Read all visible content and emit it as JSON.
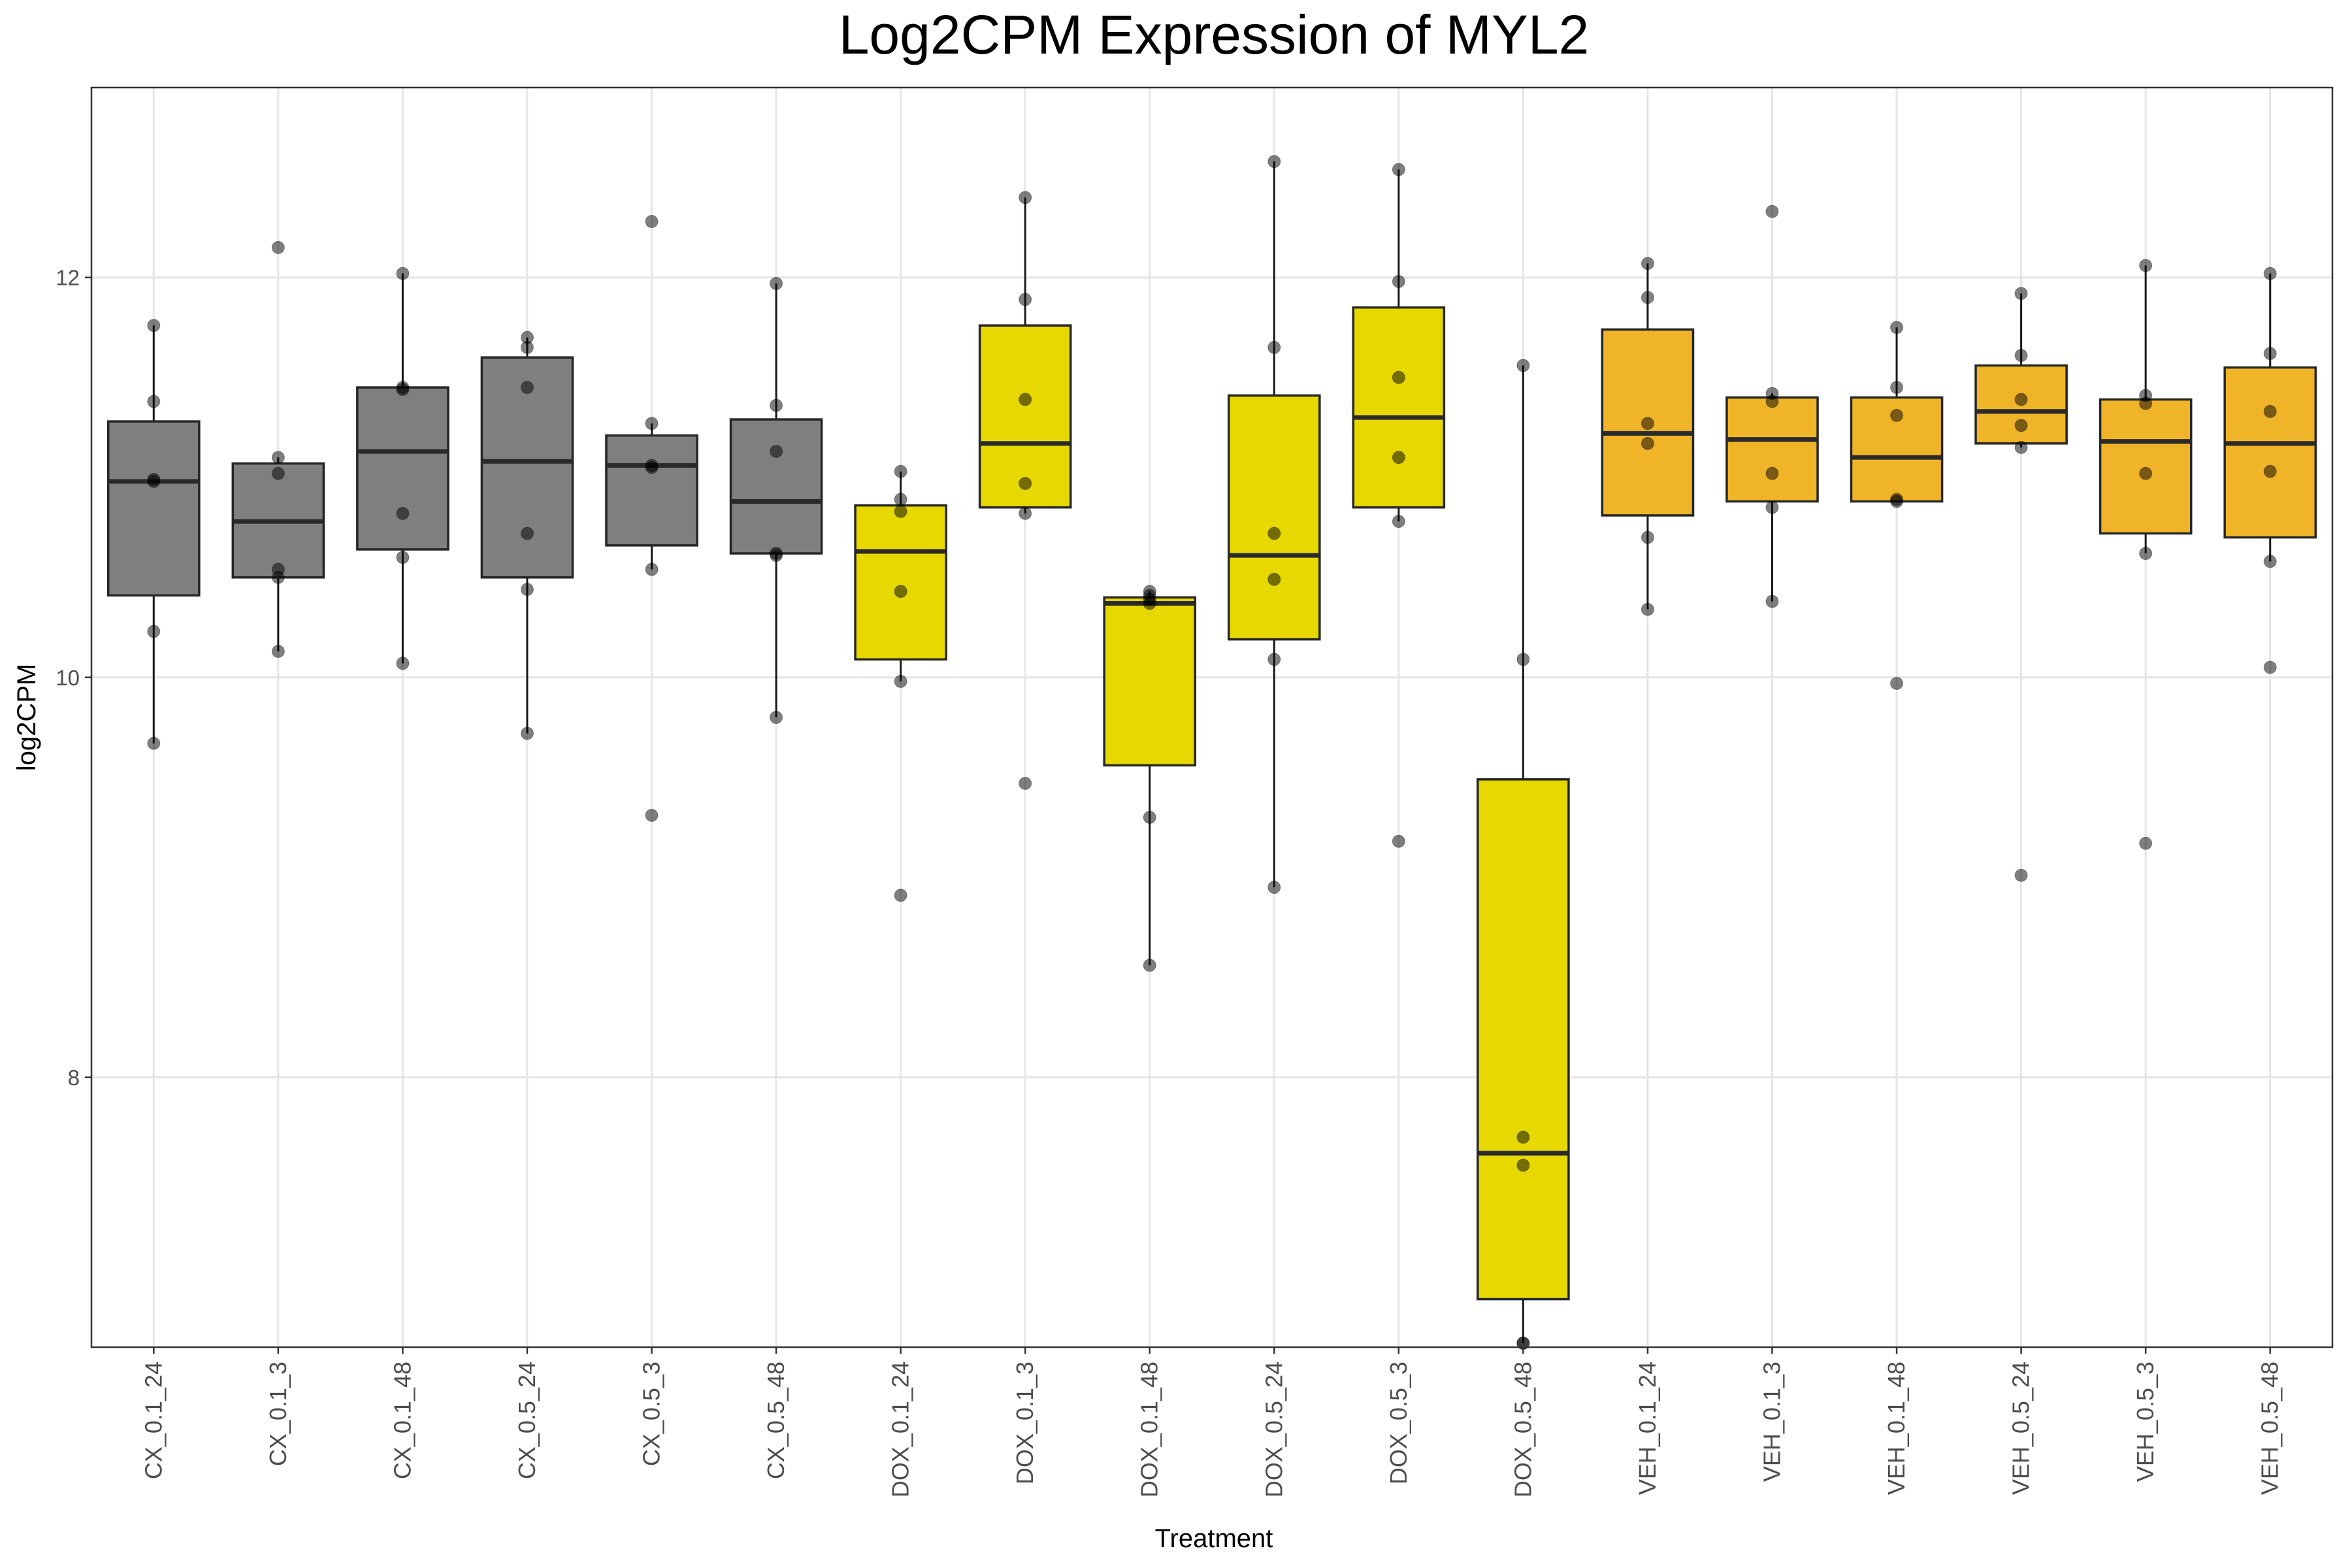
{
  "chart_data": {
    "type": "box",
    "title": "Log2CPM Expression of MYL2",
    "xlabel": "Treatment",
    "ylabel": "log2CPM",
    "ylim": [
      6.65,
      12.95
    ],
    "yticks": [
      8,
      10,
      12
    ],
    "grid": true,
    "legend": "none",
    "colors": {
      "CX": "#7f7f7f",
      "DOX": "#e6d800",
      "VEH": "#f0b429"
    },
    "categories": [
      "CX_0.1_24",
      "CX_0.1_3",
      "CX_0.1_48",
      "CX_0.5_24",
      "CX_0.5_3",
      "CX_0.5_48",
      "DOX_0.1_24",
      "DOX_0.1_3",
      "DOX_0.1_48",
      "DOX_0.5_24",
      "DOX_0.5_3",
      "DOX_0.5_48",
      "VEH_0.1_24",
      "VEH_0.1_3",
      "VEH_0.1_48",
      "VEH_0.5_24",
      "VEH_0.5_3",
      "VEH_0.5_48"
    ],
    "groups": [
      "CX",
      "CX",
      "CX",
      "CX",
      "CX",
      "CX",
      "DOX",
      "DOX",
      "DOX",
      "DOX",
      "DOX",
      "DOX",
      "VEH",
      "VEH",
      "VEH",
      "VEH",
      "VEH",
      "VEH"
    ],
    "boxes": [
      {
        "q1": 10.41,
        "median": 10.98,
        "q3": 11.28,
        "whisker_low": 9.67,
        "whisker_high": 11.76
      },
      {
        "q1": 10.5,
        "median": 10.78,
        "q3": 11.07,
        "whisker_low": 10.13,
        "whisker_high": 11.1
      },
      {
        "q1": 10.64,
        "median": 11.13,
        "q3": 11.45,
        "whisker_low": 10.07,
        "whisker_high": 12.02
      },
      {
        "q1": 10.5,
        "median": 11.08,
        "q3": 11.6,
        "whisker_low": 9.72,
        "whisker_high": 11.7
      },
      {
        "q1": 10.66,
        "median": 11.06,
        "q3": 11.21,
        "whisker_low": 10.54,
        "whisker_high": 11.27
      },
      {
        "q1": 10.62,
        "median": 10.88,
        "q3": 11.29,
        "whisker_low": 9.8,
        "whisker_high": 11.97
      },
      {
        "q1": 10.09,
        "median": 10.63,
        "q3": 10.86,
        "whisker_low": 9.98,
        "whisker_high": 11.03
      },
      {
        "q1": 10.85,
        "median": 11.17,
        "q3": 11.76,
        "whisker_low": 10.82,
        "whisker_high": 12.4
      },
      {
        "q1": 9.56,
        "median": 10.37,
        "q3": 10.4,
        "whisker_low": 8.56,
        "whisker_high": 10.43
      },
      {
        "q1": 10.19,
        "median": 10.61,
        "q3": 11.41,
        "whisker_low": 8.95,
        "whisker_high": 12.58
      },
      {
        "q1": 10.85,
        "median": 11.3,
        "q3": 11.85,
        "whisker_low": 10.78,
        "whisker_high": 12.54
      },
      {
        "q1": 6.89,
        "median": 7.62,
        "q3": 9.49,
        "whisker_low": 6.67,
        "whisker_high": 11.56
      },
      {
        "q1": 10.81,
        "median": 11.22,
        "q3": 11.74,
        "whisker_low": 10.34,
        "whisker_high": 12.07
      },
      {
        "q1": 10.88,
        "median": 11.19,
        "q3": 11.4,
        "whisker_low": 10.38,
        "whisker_high": 11.42
      },
      {
        "q1": 10.88,
        "median": 11.1,
        "q3": 11.4,
        "whisker_low": 10.88,
        "whisker_high": 11.75
      },
      {
        "q1": 11.17,
        "median": 11.33,
        "q3": 11.56,
        "whisker_low": 11.15,
        "whisker_high": 11.92
      },
      {
        "q1": 10.72,
        "median": 11.18,
        "q3": 11.39,
        "whisker_low": 10.62,
        "whisker_high": 12.06
      },
      {
        "q1": 10.7,
        "median": 11.17,
        "q3": 11.55,
        "whisker_low": 10.58,
        "whisker_high": 12.02
      }
    ],
    "points": [
      [
        11.76,
        11.38,
        10.99,
        10.98,
        10.23,
        9.67
      ],
      [
        12.15,
        11.1,
        11.02,
        10.54,
        10.5,
        10.13
      ],
      [
        12.02,
        11.45,
        11.44,
        10.82,
        10.6,
        10.07
      ],
      [
        11.7,
        11.65,
        11.45,
        10.72,
        10.44,
        9.72
      ],
      [
        12.28,
        11.27,
        11.06,
        11.05,
        10.54,
        9.31
      ],
      [
        11.97,
        11.36,
        11.13,
        10.62,
        10.61,
        9.8
      ],
      [
        11.03,
        10.89,
        10.83,
        10.43,
        9.98,
        8.91
      ],
      [
        12.4,
        11.89,
        11.39,
        10.97,
        10.82,
        9.47
      ],
      [
        10.43,
        10.41,
        10.39,
        10.37,
        9.3,
        8.56
      ],
      [
        12.58,
        11.65,
        10.72,
        10.49,
        10.09,
        8.95
      ],
      [
        12.54,
        11.98,
        11.5,
        11.1,
        10.78,
        9.18
      ],
      [
        11.56,
        10.09,
        7.7,
        7.56,
        6.67,
        6.67
      ],
      [
        12.07,
        11.9,
        11.27,
        11.17,
        10.7,
        10.34
      ],
      [
        12.33,
        11.42,
        11.38,
        11.02,
        10.85,
        10.38
      ],
      [
        11.75,
        11.45,
        11.31,
        10.89,
        10.88,
        9.97
      ],
      [
        11.92,
        11.61,
        11.39,
        11.26,
        11.15,
        9.01
      ],
      [
        12.06,
        11.41,
        11.37,
        11.02,
        10.62,
        9.17
      ],
      [
        12.02,
        11.62,
        11.33,
        11.03,
        10.58,
        10.05
      ]
    ]
  }
}
